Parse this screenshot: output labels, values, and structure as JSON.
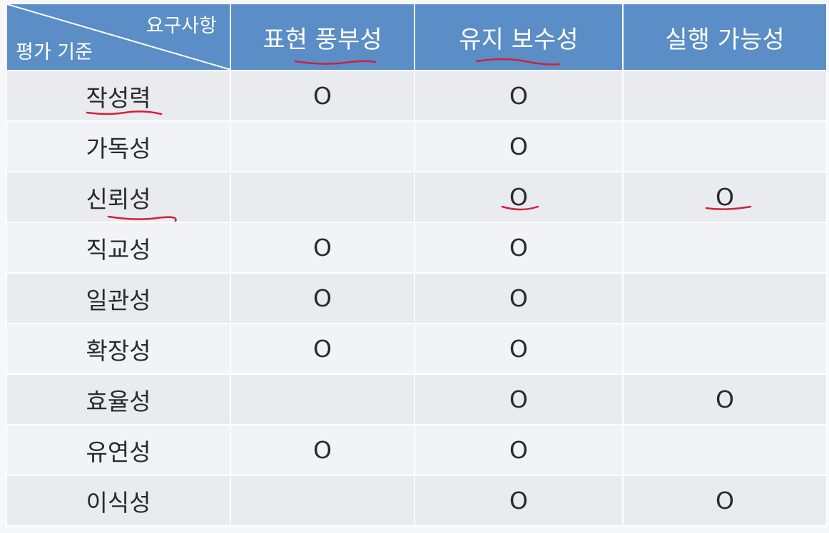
{
  "table": {
    "corner": {
      "top_label": "요구사항",
      "bottom_label": "평가 기준"
    },
    "columns": [
      "표현 풍부성",
      "유지 보수성",
      "실행 가능성"
    ],
    "rows": [
      {
        "label": "작성력",
        "marks": [
          "O",
          "O",
          ""
        ]
      },
      {
        "label": "가독성",
        "marks": [
          "",
          "O",
          ""
        ]
      },
      {
        "label": "신뢰성",
        "marks": [
          "",
          "O",
          "O"
        ]
      },
      {
        "label": "직교성",
        "marks": [
          "O",
          "O",
          ""
        ]
      },
      {
        "label": "일관성",
        "marks": [
          "O",
          "O",
          ""
        ]
      },
      {
        "label": "확장성",
        "marks": [
          "O",
          "O",
          ""
        ]
      },
      {
        "label": "효율성",
        "marks": [
          "",
          "O",
          "O"
        ]
      },
      {
        "label": "유연성",
        "marks": [
          "O",
          "O",
          ""
        ]
      },
      {
        "label": "이식성",
        "marks": [
          "",
          "O",
          "O"
        ]
      }
    ]
  },
  "colors": {
    "header": "#5b8dc6",
    "row_odd": "#e9ebef",
    "row_even": "#f2f3f6",
    "annotation_ink": "#d21f3c"
  }
}
